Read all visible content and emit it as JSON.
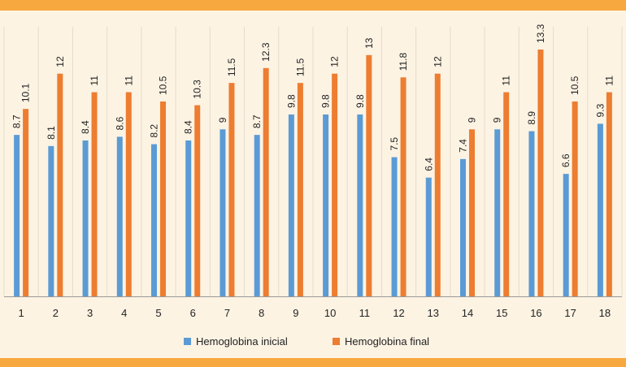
{
  "chart_data": {
    "type": "bar",
    "title": "",
    "xlabel": "",
    "ylabel": "",
    "ylim": [
      0,
      14
    ],
    "categories": [
      "1",
      "2",
      "3",
      "4",
      "5",
      "6",
      "7",
      "8",
      "9",
      "10",
      "11",
      "12",
      "13",
      "14",
      "15",
      "16",
      "17",
      "18"
    ],
    "series": [
      {
        "name": "Hemoglobina inicial",
        "color": "#5b9bd5",
        "values": [
          8.7,
          8.1,
          8.4,
          8.6,
          8.2,
          8.4,
          9,
          8.7,
          9.8,
          9.8,
          9.8,
          7.5,
          6.4,
          7.4,
          9,
          8.9,
          6.6,
          9.3
        ]
      },
      {
        "name": "Hemoglobina final",
        "color": "#ed7d31",
        "values": [
          10.1,
          12,
          11,
          11,
          10.5,
          10.3,
          11.5,
          12.3,
          11.5,
          12,
          13,
          11.8,
          12,
          9,
          11,
          13.3,
          10.5,
          11
        ]
      }
    ],
    "legend_position": "bottom"
  },
  "colors": {
    "band": "#f7a83e",
    "background": "#fdf3e3",
    "gridline": "#e3dccf"
  }
}
